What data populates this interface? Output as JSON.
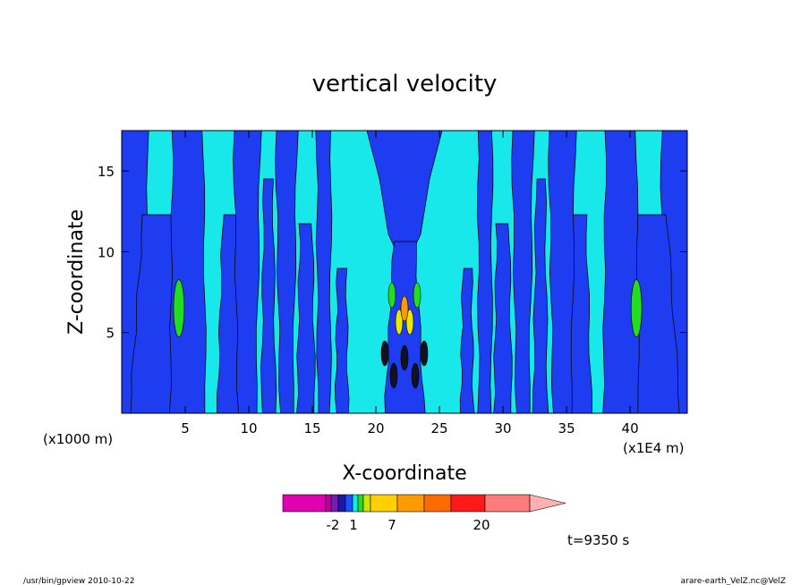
{
  "chart_data": {
    "type": "heatmap",
    "title": "vertical velocity",
    "xlabel": "X-coordinate",
    "ylabel": "Z-coordinate",
    "x_unit_left": "(x1000 m)",
    "x_unit_right": "(x1E4 m)",
    "xlim": [
      0,
      44.5
    ],
    "ylim": [
      0,
      17.5
    ],
    "x_ticks": [
      5,
      10,
      15,
      20,
      25,
      30,
      35,
      40
    ],
    "y_ticks": [
      5,
      10,
      15
    ],
    "grid": false,
    "colorbar": {
      "colors": [
        "#e000b0",
        "#c0009a",
        "#7a1ab0",
        "#1a1aa8",
        "#1e50ff",
        "#10e8e8",
        "#22dd22",
        "#c8e800",
        "#ffd000",
        "#ff9a00",
        "#ff6a00",
        "#ff1a1a",
        "#ff7a7a"
      ],
      "extend_color": "#ffb0b0",
      "tick_labels": [
        "-2",
        "1",
        "7",
        "20"
      ]
    },
    "time_label": "t=9350 s",
    "footer_left": "/usr/bin/gpview   2010-10-22",
    "footer_right": "arare-earth_VelZ.nc@VelZ"
  }
}
